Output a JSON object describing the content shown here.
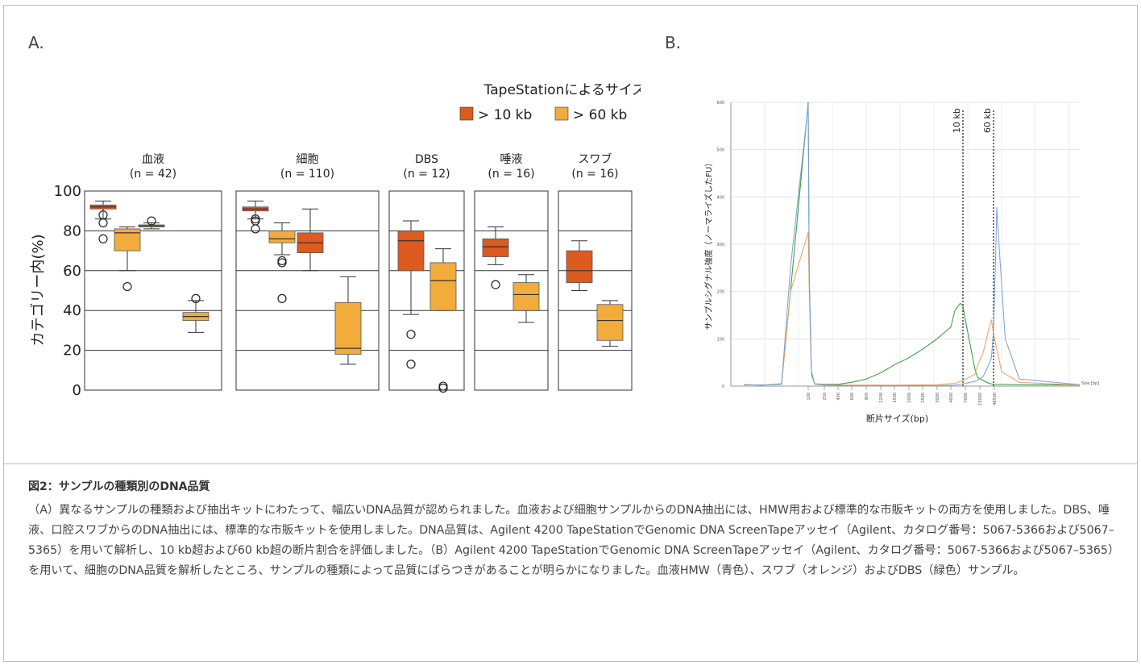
{
  "panels": {
    "a_label": "A.",
    "b_label": "B."
  },
  "legend": {
    "title": "TapeStationによるサイズ",
    "items": [
      {
        "label": "> 10 kb",
        "color": "#dd5a21"
      },
      {
        "label": "> 60 kb",
        "color": "#f2ac3c"
      }
    ]
  },
  "caption": {
    "title": "図2：サンプルの種類別のDNA品質",
    "body": "（A）異なるサンプルの種類および抽出キットにわたって、幅広いDNA品質が認められました。血液および細胞サンプルからのDNA抽出には、HMW用および標準的な市販キットの両方を使用しました。DBS、唾液、口腔スワブからのDNA抽出には、標準的な市販キットを使用しました。DNA品質は、Agilent 4200 TapeStationでGenomic DNA ScreenTapeアッセイ（Agilent、カタログ番号：5067-5366および5067–5365）を用いて解析し、10 kb超および60 kb超の断片割合を評価しました。（B）Agilent 4200 TapeStationでGenomic DNA ScreenTapeアッセイ（Agilent、カタログ番号：5067-5366および5067–5365）を用いて、細胞のDNA品質を解析したところ、サンプルの種類によって品質にばらつきがあることが明らかになりました。血液HMW（青色）、スワブ（オレンジ）およびDBS（緑色）サンプル。"
  },
  "chart_data": [
    {
      "type": "boxplot",
      "ylabel": "カテゴリー内(%)",
      "ylim": [
        0,
        100
      ],
      "yticks": [
        0,
        20,
        40,
        60,
        80,
        100
      ],
      "grid": true,
      "legend_placement": "top-right",
      "groups": [
        {
          "name": "血液",
          "n_label": "(n = 42)",
          "boxes": [
            {
              "series": "> 10 kb",
              "whisker_low": 86,
              "q1": 91,
              "median": 92,
              "q3": 93,
              "whisker_high": 95,
              "outliers": [
                88,
                84,
                76
              ]
            },
            {
              "series": "> 60 kb",
              "whisker_low": 60,
              "q1": 70,
              "median": 79,
              "q3": 81,
              "whisker_high": 82,
              "outliers": [
                52
              ]
            },
            {
              "series": "> 60 kb",
              "whisker_low": 81,
              "q1": 82,
              "median": 82.5,
              "q3": 83,
              "whisker_high": 84,
              "outliers": [
                85
              ]
            },
            {
              "series": "> 60 kb",
              "whisker_low": 29,
              "q1": 35,
              "median": 37,
              "q3": 39,
              "whisker_high": 45,
              "outliers": [
                46
              ]
            }
          ]
        },
        {
          "name": "細胞",
          "n_label": "(n = 110)",
          "boxes": [
            {
              "series": "> 10 kb",
              "whisker_low": 86,
              "q1": 90,
              "median": 91,
              "q3": 92,
              "whisker_high": 95,
              "outliers": [
                86,
                85,
                81
              ]
            },
            {
              "series": "> 60 kb",
              "whisker_low": 68,
              "q1": 74,
              "median": 76,
              "q3": 80,
              "whisker_high": 84,
              "outliers": [
                65,
                64,
                46
              ]
            },
            {
              "series": "> 10 kb",
              "whisker_low": 60,
              "q1": 69,
              "median": 74,
              "q3": 79,
              "whisker_high": 91,
              "outliers": []
            },
            {
              "series": "> 60 kb",
              "whisker_low": 13,
              "q1": 18,
              "median": 21,
              "q3": 44,
              "whisker_high": 57,
              "outliers": []
            }
          ]
        },
        {
          "name": "DBS",
          "n_label": "(n = 12)",
          "boxes": [
            {
              "series": "> 10 kb",
              "whisker_low": 38,
              "q1": 60,
              "median": 75,
              "q3": 80,
              "whisker_high": 85,
              "outliers": [
                28,
                13
              ]
            },
            {
              "series": "> 60 kb",
              "whisker_low": 40,
              "q1": 40,
              "median": 55,
              "q3": 64,
              "whisker_high": 71,
              "outliers": [
                2,
                1
              ]
            }
          ]
        },
        {
          "name": "唾液",
          "n_label": "(n = 16)",
          "boxes": [
            {
              "series": "> 10 kb",
              "whisker_low": 63,
              "q1": 67,
              "median": 72,
              "q3": 76,
              "whisker_high": 82,
              "outliers": [
                53
              ]
            },
            {
              "series": "> 60 kb",
              "whisker_low": 34,
              "q1": 40,
              "median": 48,
              "q3": 54,
              "whisker_high": 58,
              "outliers": []
            }
          ]
        },
        {
          "name": "スワブ",
          "n_label": "(n = 16)",
          "boxes": [
            {
              "series": "> 10 kb",
              "whisker_low": 50,
              "q1": 54,
              "median": 60,
              "q3": 70,
              "whisker_high": 75,
              "outliers": []
            },
            {
              "series": "> 60 kb",
              "whisker_low": 22,
              "q1": 25,
              "median": 35,
              "q3": 43,
              "whisker_high": 45,
              "outliers": []
            }
          ]
        }
      ]
    },
    {
      "type": "line",
      "xlabel": "断片サイズ(bp)",
      "ylabel": "サンプルシグナル強度（ノーマライズしたFU）",
      "xlabel_corner": "Size [bp]",
      "x_ticks": [
        "100",
        "250",
        "400",
        "600",
        "900",
        "1200",
        "1500",
        "2000",
        "2500",
        "3000",
        "4000",
        "7000",
        "15000",
        "48500"
      ],
      "y_ticks": [
        0,
        100,
        200,
        300,
        400,
        500,
        600
      ],
      "ylim": [
        0,
        600
      ],
      "grid": true,
      "markers": [
        {
          "label": "10 kb",
          "position": 10000
        },
        {
          "label": "60 kb",
          "position": 60000
        }
      ],
      "series": [
        {
          "color": "#2f9a3a",
          "points": [
            [
              25,
              3
            ],
            [
              50,
              2
            ],
            [
              75,
              5
            ],
            [
              90,
              200
            ],
            [
              100,
              600
            ],
            [
              110,
              230
            ],
            [
              130,
              30
            ],
            [
              160,
              5
            ],
            [
              250,
              4
            ],
            [
              400,
              4
            ],
            [
              600,
              8
            ],
            [
              900,
              15
            ],
            [
              1200,
              28
            ],
            [
              1500,
              45
            ],
            [
              2000,
              60
            ],
            [
              2500,
              78
            ],
            [
              3000,
              100
            ],
            [
              4000,
              125
            ],
            [
              7000,
              160
            ],
            [
              9000,
              175
            ],
            [
              10000,
              170
            ],
            [
              11000,
              140
            ],
            [
              15000,
              35
            ],
            [
              20000,
              18
            ],
            [
              30000,
              12
            ],
            [
              48500,
              6
            ],
            [
              60000,
              4
            ],
            [
              100000,
              3
            ],
            [
              150000,
              2
            ]
          ]
        },
        {
          "color": "#f0a060",
          "points": [
            [
              25,
              3
            ],
            [
              50,
              2
            ],
            [
              75,
              4
            ],
            [
              90,
              200
            ],
            [
              100,
              325
            ],
            [
              110,
              200
            ],
            [
              130,
              25
            ],
            [
              160,
              5
            ],
            [
              250,
              3
            ],
            [
              600,
              2
            ],
            [
              1500,
              2
            ],
            [
              3000,
              3
            ],
            [
              7000,
              6
            ],
            [
              10000,
              12
            ],
            [
              15000,
              25
            ],
            [
              20000,
              45
            ],
            [
              30000,
              70
            ],
            [
              48500,
              120
            ],
            [
              55000,
              140
            ],
            [
              60000,
              110
            ],
            [
              75000,
              30
            ],
            [
              100000,
              8
            ],
            [
              150000,
              2
            ]
          ]
        },
        {
          "color": "#7b9fd6",
          "points": [
            [
              25,
              3
            ],
            [
              50,
              2
            ],
            [
              75,
              4
            ],
            [
              90,
              250
            ],
            [
              100,
              595
            ],
            [
              110,
              230
            ],
            [
              130,
              25
            ],
            [
              160,
              4
            ],
            [
              250,
              2
            ],
            [
              600,
              1
            ],
            [
              1500,
              1
            ],
            [
              3000,
              1
            ],
            [
              7000,
              2
            ],
            [
              10000,
              5
            ],
            [
              15000,
              10
            ],
            [
              30000,
              20
            ],
            [
              48500,
              45
            ],
            [
              55000,
              60
            ],
            [
              60000,
              120
            ],
            [
              65000,
              270
            ],
            [
              68000,
              378
            ],
            [
              72000,
              280
            ],
            [
              80000,
              100
            ],
            [
              100000,
              15
            ],
            [
              150000,
              3
            ]
          ]
        }
      ]
    }
  ]
}
